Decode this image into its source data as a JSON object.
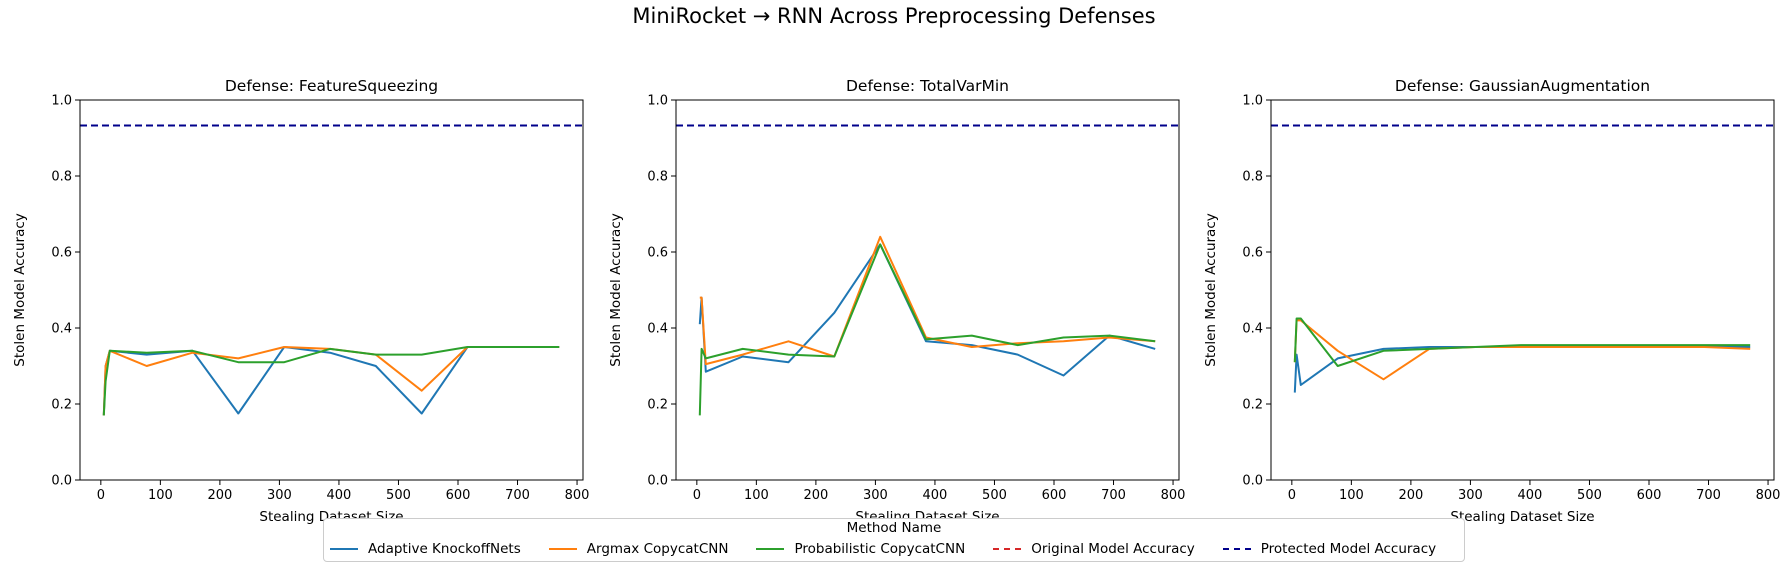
{
  "figure": {
    "suptitle": "MiniRocket → RNN Across Preprocessing Defenses",
    "legend_title": "Method Name",
    "legend_location": "bottom-center"
  },
  "colors": {
    "Adaptive KnockoffNets": "#1f77b4",
    "Argmax CopycatCNN": "#ff7f0e",
    "Probabilistic CopycatCNN": "#2ca02c",
    "Original Model Accuracy": "#d62728",
    "Protected Model Accuracy": "#00008b"
  },
  "legend": [
    {
      "label": "Adaptive KnockoffNets",
      "style": "solid"
    },
    {
      "label": "Argmax CopycatCNN",
      "style": "solid"
    },
    {
      "label": "Probabilistic CopycatCNN",
      "style": "solid"
    },
    {
      "label": "Original Model Accuracy",
      "style": "dashed"
    },
    {
      "label": "Protected Model Accuracy",
      "style": "dashed"
    }
  ],
  "chart_data": [
    {
      "type": "line",
      "title": "Defense: FeatureSqueezing",
      "xlabel": "Stealing Dataset Size",
      "ylabel": "Stolen Model Accuracy",
      "xlim": [
        -35,
        810
      ],
      "ylim": [
        0,
        1.0
      ],
      "xticks": [
        0,
        100,
        200,
        300,
        400,
        500,
        600,
        700,
        800
      ],
      "yticks": [
        0.0,
        0.2,
        0.4,
        0.6,
        0.8,
        1.0
      ],
      "grid": false,
      "hlines": [
        {
          "name": "Original Model Accuracy",
          "y": 0.933
        },
        {
          "name": "Protected Model Accuracy",
          "y": 0.933
        }
      ],
      "series": [
        {
          "name": "Adaptive KnockoffNets",
          "x": [
            5,
            8,
            15,
            77,
            154,
            231,
            308,
            385,
            462,
            539,
            616,
            693,
            770
          ],
          "y": [
            0.17,
            0.3,
            0.34,
            0.33,
            0.34,
            0.175,
            0.35,
            0.335,
            0.3,
            0.175,
            0.35,
            0.35,
            0.35
          ]
        },
        {
          "name": "Argmax CopycatCNN",
          "x": [
            5,
            8,
            15,
            77,
            154,
            231,
            308,
            385,
            462,
            539,
            616,
            693,
            770
          ],
          "y": [
            0.17,
            0.3,
            0.34,
            0.3,
            0.335,
            0.32,
            0.35,
            0.345,
            0.33,
            0.235,
            0.35,
            0.35,
            0.35
          ]
        },
        {
          "name": "Probabilistic CopycatCNN",
          "x": [
            5,
            8,
            15,
            77,
            154,
            231,
            308,
            385,
            462,
            539,
            616,
            693,
            770
          ],
          "y": [
            0.17,
            0.26,
            0.34,
            0.335,
            0.34,
            0.31,
            0.31,
            0.345,
            0.33,
            0.33,
            0.35,
            0.35,
            0.35
          ]
        }
      ]
    },
    {
      "type": "line",
      "title": "Defense: TotalVarMin",
      "xlabel": "Stealing Dataset Size",
      "ylabel": "Stolen Model Accuracy",
      "xlim": [
        -35,
        810
      ],
      "ylim": [
        0,
        1.0
      ],
      "xticks": [
        0,
        100,
        200,
        300,
        400,
        500,
        600,
        700,
        800
      ],
      "yticks": [
        0.0,
        0.2,
        0.4,
        0.6,
        0.8,
        1.0
      ],
      "grid": false,
      "hlines": [
        {
          "name": "Original Model Accuracy",
          "y": 0.933
        },
        {
          "name": "Protected Model Accuracy",
          "y": 0.933
        }
      ],
      "series": [
        {
          "name": "Adaptive KnockoffNets",
          "x": [
            5,
            8,
            15,
            77,
            154,
            231,
            308,
            385,
            462,
            539,
            616,
            693,
            770
          ],
          "y": [
            0.41,
            0.48,
            0.285,
            0.325,
            0.31,
            0.44,
            0.62,
            0.365,
            0.355,
            0.33,
            0.275,
            0.38,
            0.345
          ]
        },
        {
          "name": "Argmax CopycatCNN",
          "x": [
            5,
            8,
            15,
            77,
            154,
            231,
            308,
            385,
            462,
            539,
            616,
            693,
            770
          ],
          "y": [
            0.48,
            0.48,
            0.305,
            0.33,
            0.365,
            0.325,
            0.64,
            0.375,
            0.35,
            0.36,
            0.365,
            0.375,
            0.365
          ]
        },
        {
          "name": "Probabilistic CopycatCNN",
          "x": [
            5,
            8,
            15,
            77,
            154,
            231,
            308,
            385,
            462,
            539,
            616,
            693,
            770
          ],
          "y": [
            0.17,
            0.345,
            0.32,
            0.345,
            0.33,
            0.325,
            0.62,
            0.37,
            0.38,
            0.355,
            0.375,
            0.38,
            0.365
          ]
        }
      ]
    },
    {
      "type": "line",
      "title": "Defense: GaussianAugmentation",
      "xlabel": "Stealing Dataset Size",
      "ylabel": "Stolen Model Accuracy",
      "xlim": [
        -35,
        810
      ],
      "ylim": [
        0,
        1.0
      ],
      "xticks": [
        0,
        100,
        200,
        300,
        400,
        500,
        600,
        700,
        800
      ],
      "yticks": [
        0.0,
        0.2,
        0.4,
        0.6,
        0.8,
        1.0
      ],
      "grid": false,
      "hlines": [
        {
          "name": "Original Model Accuracy",
          "y": 0.933
        },
        {
          "name": "Protected Model Accuracy",
          "y": 0.933
        }
      ],
      "series": [
        {
          "name": "Adaptive KnockoffNets",
          "x": [
            5,
            8,
            15,
            77,
            154,
            231,
            308,
            385,
            462,
            539,
            616,
            693,
            770
          ],
          "y": [
            0.23,
            0.33,
            0.25,
            0.32,
            0.345,
            0.35,
            0.35,
            0.35,
            0.35,
            0.35,
            0.35,
            0.35,
            0.35
          ]
        },
        {
          "name": "Argmax CopycatCNN",
          "x": [
            5,
            8,
            15,
            77,
            154,
            231,
            308,
            385,
            462,
            539,
            616,
            693,
            770
          ],
          "y": [
            0.31,
            0.42,
            0.42,
            0.34,
            0.265,
            0.345,
            0.35,
            0.35,
            0.35,
            0.35,
            0.35,
            0.35,
            0.345
          ]
        },
        {
          "name": "Probabilistic CopycatCNN",
          "x": [
            5,
            8,
            15,
            77,
            154,
            231,
            308,
            385,
            462,
            539,
            616,
            693,
            770
          ],
          "y": [
            0.31,
            0.425,
            0.425,
            0.3,
            0.34,
            0.345,
            0.35,
            0.355,
            0.355,
            0.355,
            0.355,
            0.355,
            0.355
          ]
        }
      ]
    }
  ]
}
